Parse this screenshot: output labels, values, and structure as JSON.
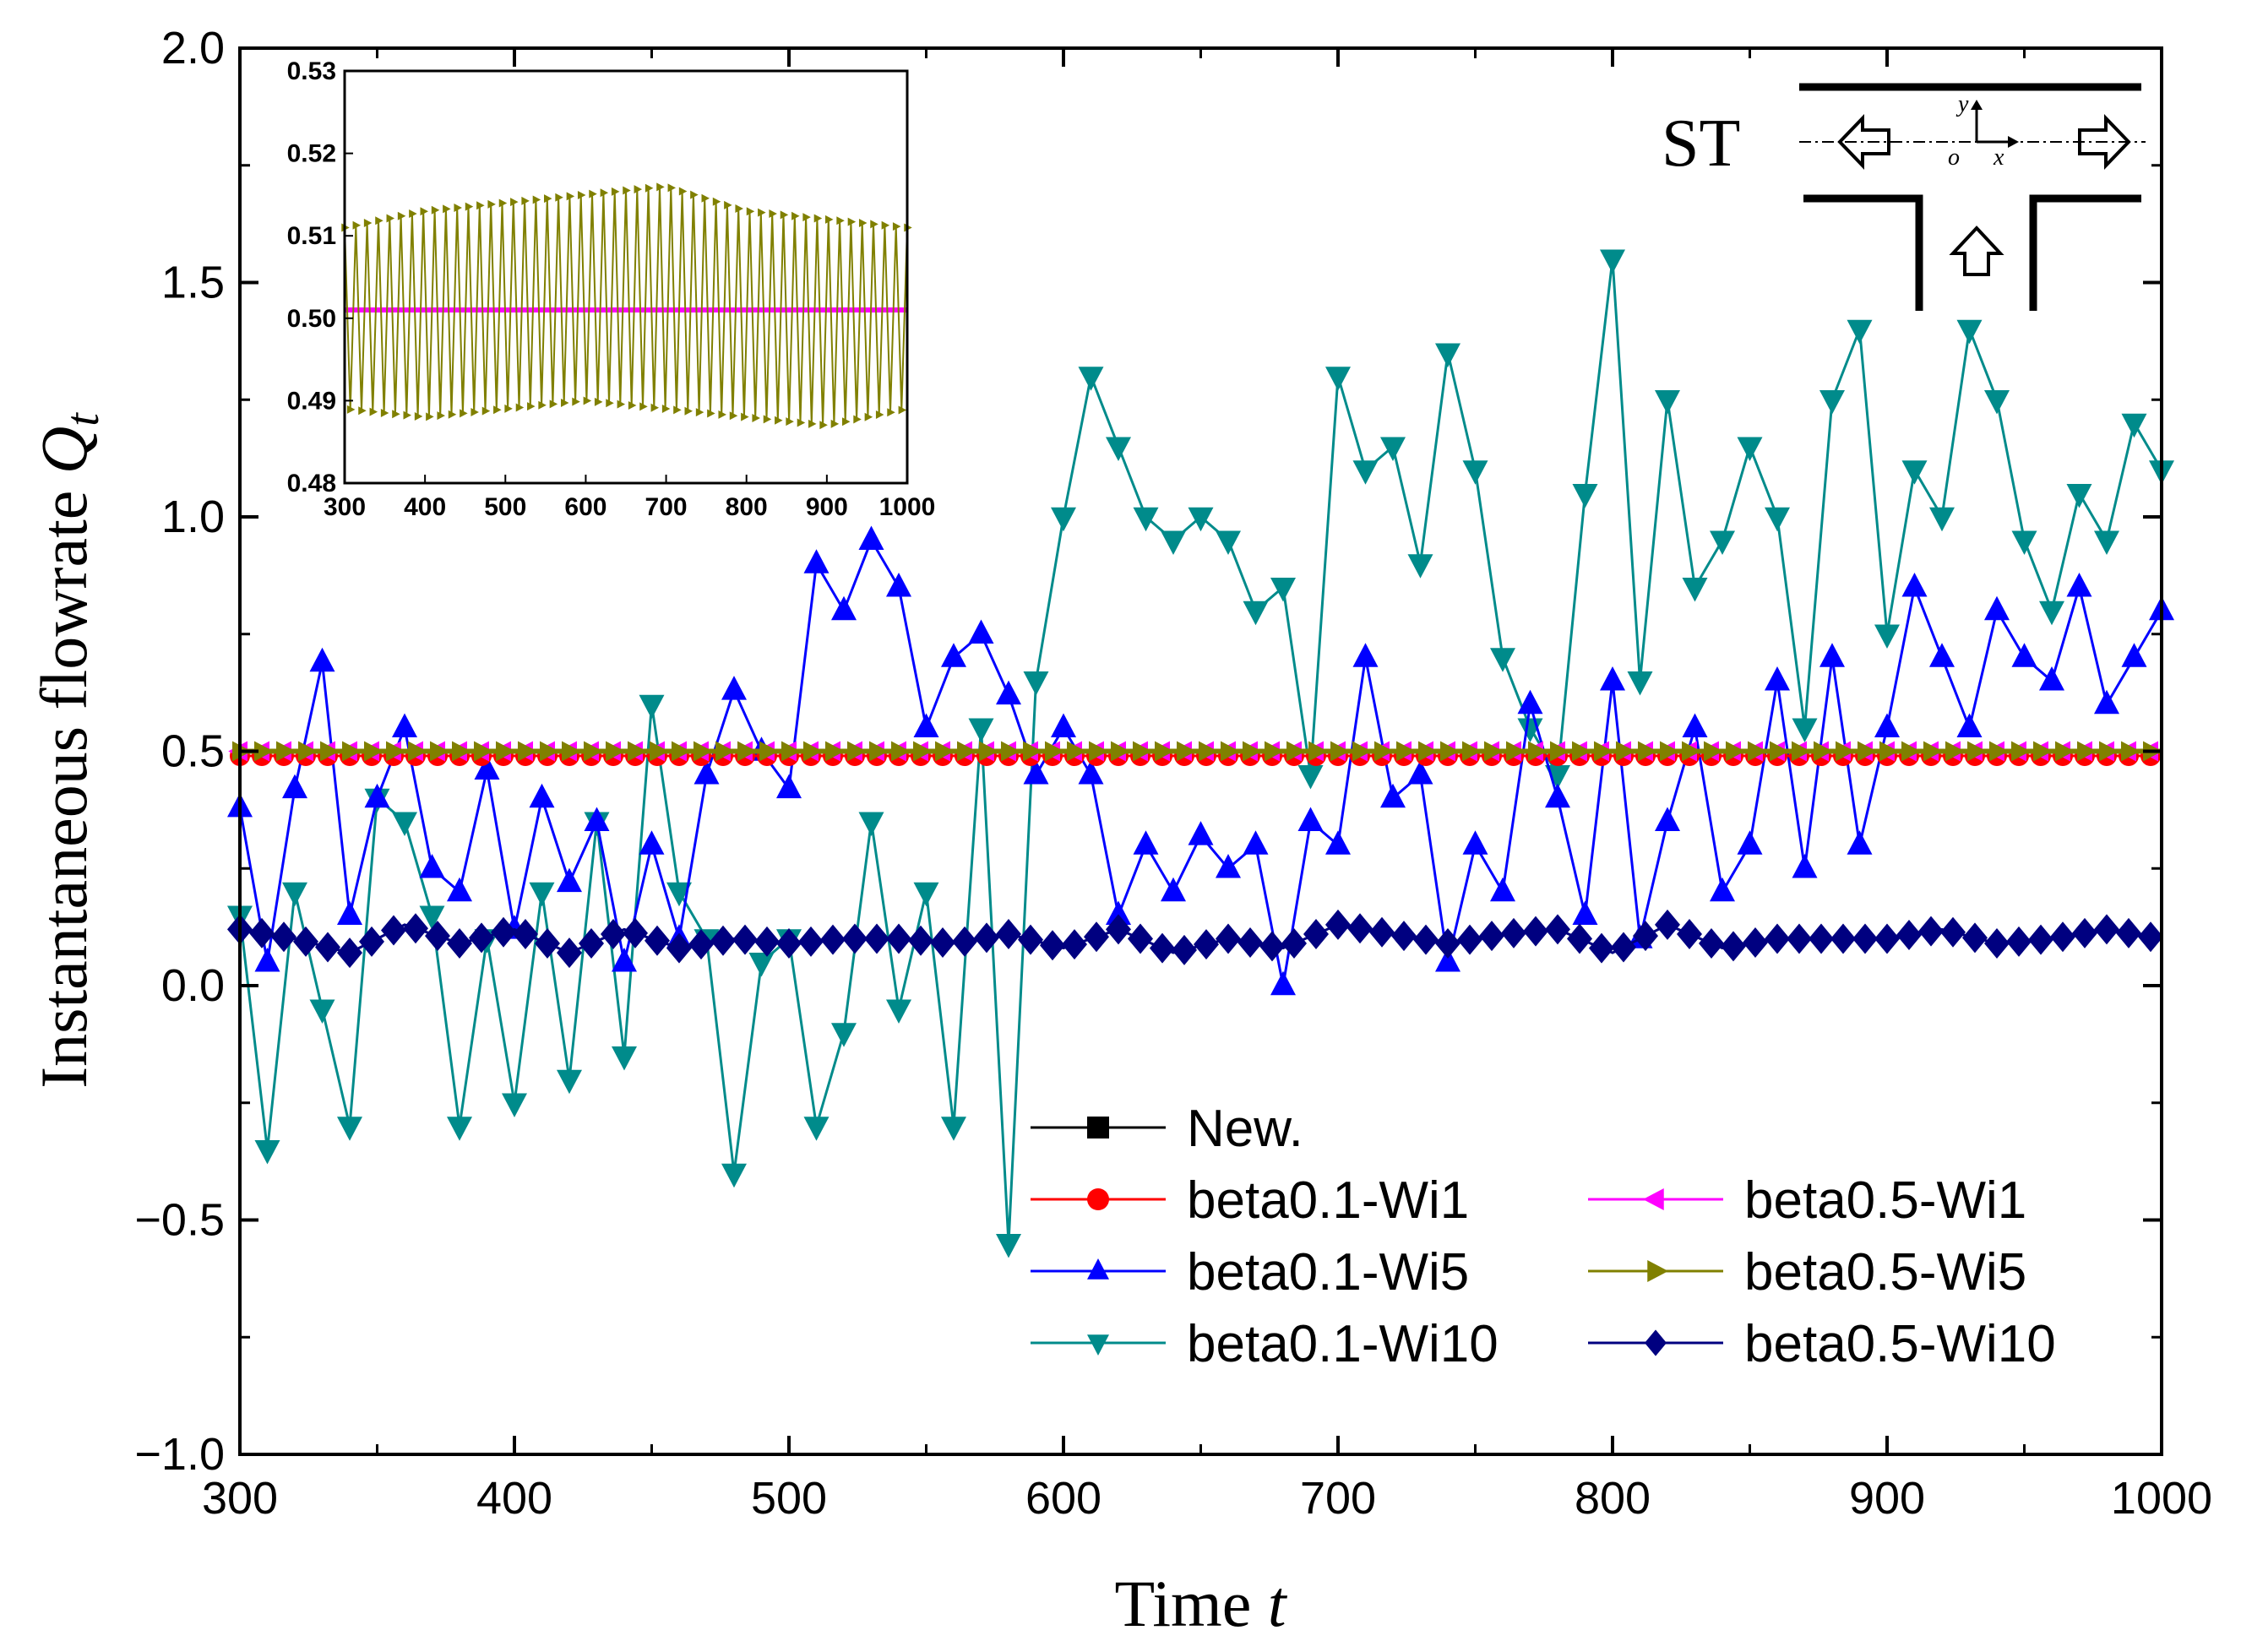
{
  "chart_data": {
    "type": "line",
    "xlabel": "Time",
    "xlabel_var": "t",
    "ylabel": "Instantaneous flowrate",
    "ylabel_var": "Q",
    "ylabel_sub": "t",
    "xlim": [
      300,
      1000
    ],
    "ylim": [
      -1.0,
      2.0
    ],
    "x_ticks": [
      "300",
      "400",
      "500",
      "600",
      "700",
      "800",
      "900",
      "1000"
    ],
    "y_ticks": [
      "−1.0",
      "−0.5",
      "0.0",
      "0.5",
      "1.0",
      "1.5",
      "2.0"
    ],
    "legend_position": "bottom-right",
    "series": [
      {
        "name": "New.",
        "color": "#000000",
        "marker": "square",
        "values": []
      },
      {
        "name": "beta0.1-Wi1",
        "color": "#ff0000",
        "marker": "circle",
        "x": [
          300,
          400,
          500,
          600,
          700,
          800,
          900,
          1000
        ],
        "y": [
          0.49,
          0.49,
          0.49,
          0.49,
          0.49,
          0.49,
          0.49,
          0.49
        ]
      },
      {
        "name": "beta0.5-Wi1",
        "color": "#ff00ff",
        "marker": "triangle-left",
        "x": [
          300,
          400,
          500,
          600,
          700,
          800,
          900,
          1000
        ],
        "y": [
          0.5,
          0.5,
          0.5,
          0.5,
          0.5,
          0.5,
          0.5,
          0.5
        ]
      },
      {
        "name": "beta0.1-Wi5",
        "color": "#0000ff",
        "marker": "triangle-up",
        "x": [
          300,
          310,
          320,
          330,
          340,
          350,
          360,
          370,
          380,
          390,
          400,
          410,
          420,
          430,
          440,
          450,
          460,
          470,
          480,
          490,
          500,
          510,
          520,
          530,
          540,
          550,
          560,
          570,
          580,
          590,
          600,
          610,
          620,
          630,
          640,
          650,
          660,
          670,
          680,
          690,
          700,
          710,
          720,
          730,
          740,
          750,
          760,
          770,
          780,
          790,
          800,
          810,
          820,
          830,
          840,
          850,
          860,
          870,
          880,
          890,
          900,
          910,
          920,
          930,
          940,
          950,
          960,
          970,
          980,
          990,
          1000
        ],
        "y": [
          0.38,
          0.05,
          0.42,
          0.69,
          0.15,
          0.4,
          0.55,
          0.25,
          0.2,
          0.46,
          0.12,
          0.4,
          0.22,
          0.35,
          0.05,
          0.3,
          0.1,
          0.45,
          0.63,
          0.5,
          0.42,
          0.9,
          0.8,
          0.95,
          0.85,
          0.55,
          0.7,
          0.75,
          0.62,
          0.45,
          0.55,
          0.45,
          0.15,
          0.3,
          0.2,
          0.32,
          0.25,
          0.3,
          0.0,
          0.35,
          0.3,
          0.7,
          0.4,
          0.45,
          0.05,
          0.3,
          0.2,
          0.6,
          0.4,
          0.15,
          0.65,
          0.1,
          0.35,
          0.55,
          0.2,
          0.3,
          0.65,
          0.25,
          0.7,
          0.3,
          0.55,
          0.85,
          0.7,
          0.55,
          0.8,
          0.7,
          0.65,
          0.85,
          0.6,
          0.7,
          0.8
        ]
      },
      {
        "name": "beta0.5-Wi5",
        "color": "#808000",
        "marker": "triangle-right",
        "x": [
          300,
          400,
          500,
          600,
          700,
          800,
          900,
          1000
        ],
        "y": [
          0.5,
          0.5,
          0.5,
          0.5,
          0.5,
          0.5,
          0.5,
          0.5
        ]
      },
      {
        "name": "beta0.1-Wi10",
        "color": "#008b8b",
        "marker": "triangle-down",
        "x": [
          300,
          310,
          320,
          330,
          340,
          350,
          360,
          370,
          380,
          390,
          400,
          410,
          420,
          430,
          440,
          450,
          460,
          470,
          480,
          490,
          500,
          510,
          520,
          530,
          540,
          550,
          560,
          570,
          580,
          590,
          600,
          610,
          620,
          630,
          640,
          650,
          660,
          670,
          680,
          690,
          700,
          710,
          720,
          730,
          740,
          750,
          760,
          770,
          780,
          790,
          800,
          810,
          820,
          830,
          840,
          850,
          860,
          870,
          880,
          890,
          900,
          910,
          920,
          930,
          940,
          950,
          960,
          970,
          980,
          990,
          1000
        ],
        "y": [
          0.15,
          -0.35,
          0.2,
          -0.05,
          -0.3,
          0.4,
          0.35,
          0.15,
          -0.3,
          0.1,
          -0.25,
          0.2,
          -0.2,
          0.35,
          -0.15,
          0.6,
          0.2,
          0.1,
          -0.4,
          0.05,
          0.1,
          -0.3,
          -0.1,
          0.35,
          -0.05,
          0.2,
          -0.3,
          0.55,
          -0.55,
          0.65,
          1.0,
          1.3,
          1.15,
          1.0,
          0.95,
          1.0,
          0.95,
          0.8,
          0.85,
          0.45,
          1.3,
          1.1,
          1.15,
          0.9,
          1.35,
          1.1,
          0.7,
          0.55,
          0.45,
          1.05,
          1.55,
          0.65,
          1.25,
          0.85,
          0.95,
          1.15,
          1.0,
          0.55,
          1.25,
          1.4,
          0.75,
          1.1,
          1.0,
          1.4,
          1.25,
          0.95,
          0.8,
          1.05,
          0.95,
          1.2,
          1.1
        ]
      },
      {
        "name": "beta0.5-Wi10",
        "color": "#000080",
        "marker": "diamond",
        "x": [
          300,
          320,
          340,
          360,
          380,
          400,
          420,
          440,
          460,
          480,
          500,
          520,
          540,
          560,
          580,
          600,
          620,
          640,
          660,
          680,
          700,
          720,
          740,
          760,
          780,
          800,
          820,
          840,
          860,
          880,
          900,
          920,
          940,
          960,
          980,
          1000
        ],
        "y": [
          0.12,
          0.1,
          0.07,
          0.13,
          0.09,
          0.12,
          0.07,
          0.12,
          0.08,
          0.1,
          0.09,
          0.1,
          0.1,
          0.09,
          0.11,
          0.08,
          0.12,
          0.07,
          0.1,
          0.08,
          0.13,
          0.11,
          0.09,
          0.11,
          0.12,
          0.07,
          0.13,
          0.08,
          0.1,
          0.1,
          0.1,
          0.12,
          0.09,
          0.1,
          0.12,
          0.1
        ]
      }
    ],
    "inset": {
      "xlim": [
        300,
        1000
      ],
      "ylim": [
        0.48,
        0.53
      ],
      "x_ticks": [
        "300",
        "400",
        "500",
        "600",
        "700",
        "800",
        "900",
        "1000"
      ],
      "y_ticks": [
        "0.48",
        "0.49",
        "0.50",
        "0.51",
        "0.52",
        "0.53"
      ],
      "series": [
        {
          "name": "beta0.5-Wi1",
          "color": "#ff00ff",
          "x": [
            300,
            1000
          ],
          "y": [
            0.501,
            0.501
          ]
        },
        {
          "name": "beta0.5-Wi5",
          "color": "#808000",
          "x": [
            300,
            400,
            500,
            600,
            700,
            800,
            900,
            1000
          ],
          "envelope_max": [
            0.511,
            0.513,
            0.514,
            0.515,
            0.516,
            0.513,
            0.512,
            0.511
          ],
          "envelope_min": [
            0.489,
            0.488,
            0.489,
            0.49,
            0.489,
            0.488,
            0.487,
            0.489
          ]
        }
      ]
    },
    "schematic": {
      "label": "ST",
      "axis_labels": {
        "x": "x",
        "y": "y",
        "origin": "o"
      }
    }
  }
}
